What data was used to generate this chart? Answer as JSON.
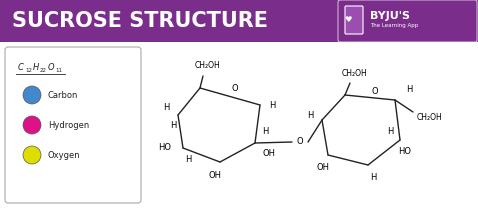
{
  "title": "SUCROSE STRUCTURE",
  "title_bg": "#7B2D8B",
  "title_color": "#FFFFFF",
  "legend_items": [
    {
      "label": "Carbon",
      "color": "#4488CC"
    },
    {
      "label": "Hydrogen",
      "color": "#DD1188"
    },
    {
      "label": "Oxygen",
      "color": "#DDDD00"
    }
  ],
  "background_color": "#FFFFFF",
  "line_color": "#222222"
}
